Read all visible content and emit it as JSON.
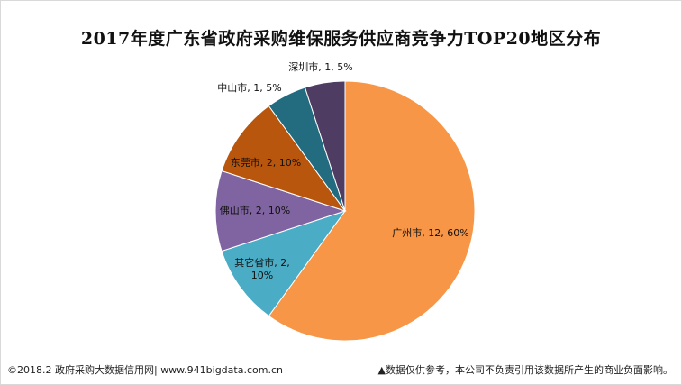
{
  "chart_data": {
    "type": "pie",
    "title": "2017年度广东省政府采购维保服务供应商竞争力TOP20地区分布",
    "slices": [
      {
        "name": "广州市",
        "value": 12,
        "percent": "60%",
        "color": "#F79646",
        "label_lines": [
          "广州市, 12, 60%"
        ]
      },
      {
        "name": "其它省市",
        "value": 2,
        "percent": "10%",
        "color": "#4BACC6",
        "label_lines": [
          "其它省市, 2,",
          "10%"
        ]
      },
      {
        "name": "佛山市",
        "value": 2,
        "percent": "10%",
        "color": "#8064A2",
        "label_lines": [
          "佛山市, 2, 10%"
        ]
      },
      {
        "name": "东莞市",
        "value": 2,
        "percent": "10%",
        "color": "#B8560E",
        "label_lines": [
          "东莞市, 2, 10%"
        ]
      },
      {
        "name": "中山市",
        "value": 1,
        "percent": "5%",
        "color": "#236C80",
        "label_lines": [
          "中山市, 1, 5%"
        ]
      },
      {
        "name": "深圳市",
        "value": 1,
        "percent": "5%",
        "color": "#4F3C63",
        "label_lines": [
          "深圳市, 1, 5%"
        ]
      }
    ]
  },
  "footer": {
    "left": "©2018.2 政府采购大数据信用网| www.941bigdata.com.cn",
    "right": "▲数据仅供参考，本公司不负责引用该数据所产生的商业负面影响。"
  }
}
